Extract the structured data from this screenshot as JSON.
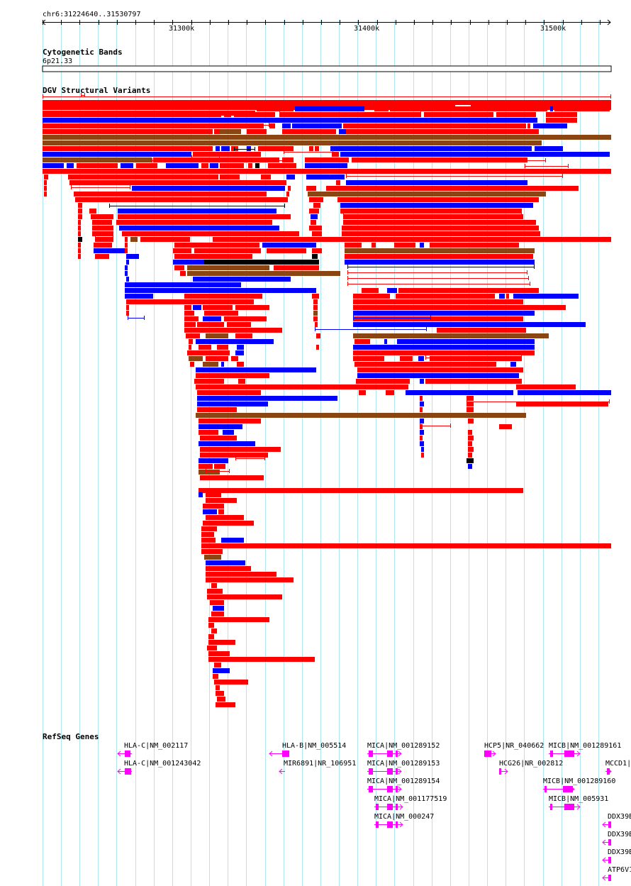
{
  "ruler": {
    "location": "chr6:31224640..31530797",
    "ticks": [
      "31300k",
      "31400k",
      "31500k"
    ]
  },
  "tracks": {
    "cytoband": {
      "title": "Cytogenetic Bands",
      "band": "6p21.33"
    },
    "dgv": {
      "title": "DGV Structural Variants"
    },
    "refseq": {
      "title": "RefSeq Genes"
    }
  },
  "genes": [
    {
      "label": "HLA-C|NM_002117"
    },
    {
      "label": "HLA-C|NM_001243042"
    },
    {
      "label": "HLA-B|NM_005514"
    },
    {
      "label": "MIR6891|NR_106951"
    },
    {
      "label": "MICA|NM_001289152"
    },
    {
      "label": "MICA|NM_001289153"
    },
    {
      "label": "MICA|NM_001289154"
    },
    {
      "label": "MICA|NM_001177519"
    },
    {
      "label": "MICA|NM_000247"
    },
    {
      "label": "HCP5|NR_040662"
    },
    {
      "label": "HCG26|NR_002812"
    },
    {
      "label": "MICB|NM_001289161"
    },
    {
      "label": "MCCD1|"
    },
    {
      "label": "MICB|NM_001289160"
    },
    {
      "label": "MICB|NM_005931"
    },
    {
      "label": "DDX39B"
    },
    {
      "label": "DDX39B"
    },
    {
      "label": "DDX39B"
    },
    {
      "label": "ATP6V1"
    }
  ],
  "colors": {
    "grid": "#aee6f0",
    "loss": "#ff0000",
    "gain": "#0000ff",
    "gain_loss": "#8b4513",
    "other": "#000000",
    "gene": "#ff00ff"
  }
}
